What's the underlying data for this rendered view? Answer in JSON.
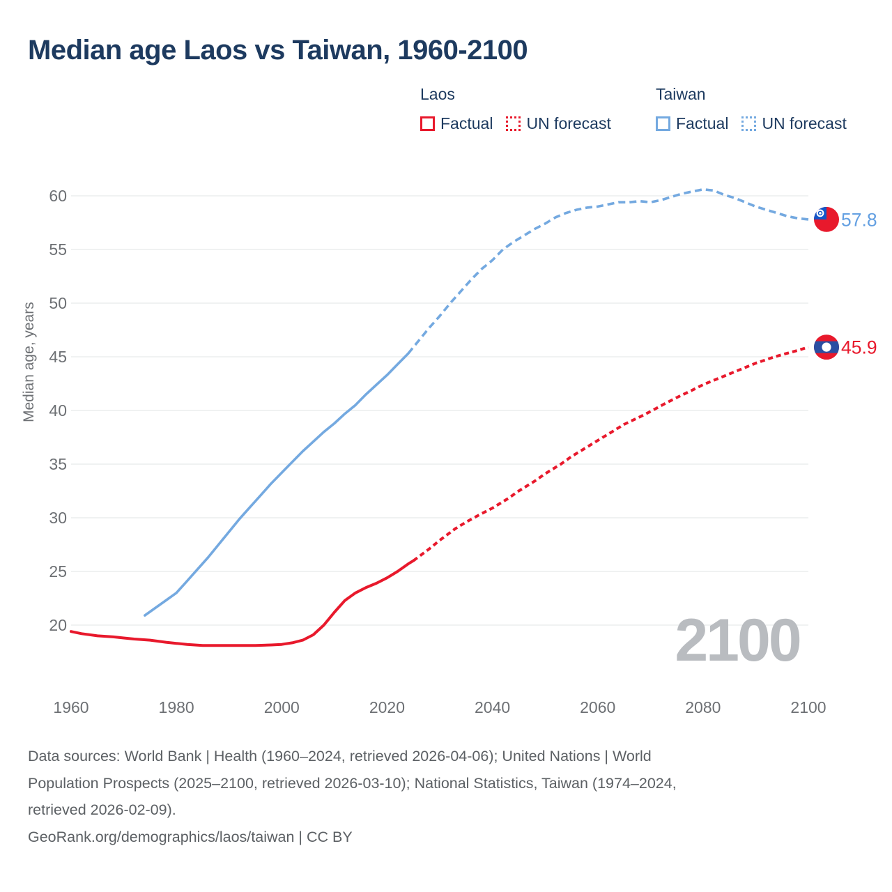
{
  "title": "Median age Laos vs Taiwan, 1960-2100",
  "legend": {
    "groups": [
      {
        "country": "Laos",
        "color": "#e8192c",
        "items": [
          {
            "label": "Factual",
            "style": "solid"
          },
          {
            "label": "UN forecast",
            "style": "dotted"
          }
        ]
      },
      {
        "country": "Taiwan",
        "color": "#74a9e0",
        "items": [
          {
            "label": "Factual",
            "style": "solid"
          },
          {
            "label": "UN forecast",
            "style": "dotted"
          }
        ]
      }
    ]
  },
  "watermark": "2100",
  "footer": {
    "lines": [
      "Data sources: World Bank | Health (1960–2024, retrieved 2026-04-06); United Nations | World",
      "Population Prospects (2025–2100, retrieved 2026-03-10); National Statistics, Taiwan (1974–2024,",
      "retrieved 2026-02-09).",
      "GeoRank.org/demographics/laos/taiwan | CC BY"
    ]
  },
  "colors": {
    "title": "#1d3a5f",
    "legend_text": "#1d3a5f",
    "laos": "#e8192c",
    "taiwan": "#74a9e0",
    "taiwan_label": "#64a0e2",
    "axis_text": "#6d7074",
    "grid": "#e8e9ea",
    "watermark": "#b9bcc0",
    "footer_text": "#5c6064",
    "flag_red": "#e8192c",
    "flag_taiwan_blue": "#1256c8",
    "flag_laos_blue": "#2a4fa2",
    "flag_white": "#ffffff"
  },
  "chart_data": {
    "type": "line",
    "title": "Median age Laos vs Taiwan, 1960-2100",
    "xlabel": "",
    "ylabel": "Median age, years",
    "x_ticks": [
      1960,
      1980,
      2000,
      2020,
      2040,
      2060,
      2080,
      2100
    ],
    "y_ticks": [
      20,
      25,
      30,
      35,
      40,
      45,
      50,
      55,
      60
    ],
    "xlim": [
      1960,
      2100
    ],
    "ylim": [
      20,
      60
    ],
    "grid": "horizontal",
    "legend_position": "top",
    "series": [
      {
        "id": "laos-factual",
        "name": "Laos — Factual",
        "color": "#e8192c",
        "dash": false,
        "width": 4,
        "points": [
          [
            1960,
            19.4
          ],
          [
            1962,
            19.2
          ],
          [
            1965,
            19.0
          ],
          [
            1968,
            18.9
          ],
          [
            1970,
            18.8
          ],
          [
            1972,
            18.7
          ],
          [
            1975,
            18.6
          ],
          [
            1978,
            18.4
          ],
          [
            1980,
            18.3
          ],
          [
            1982,
            18.2
          ],
          [
            1985,
            18.1
          ],
          [
            1988,
            18.1
          ],
          [
            1990,
            18.1
          ],
          [
            1992,
            18.1
          ],
          [
            1995,
            18.1
          ],
          [
            1998,
            18.15
          ],
          [
            2000,
            18.2
          ],
          [
            2002,
            18.35
          ],
          [
            2004,
            18.6
          ],
          [
            2006,
            19.1
          ],
          [
            2008,
            20.0
          ],
          [
            2010,
            21.2
          ],
          [
            2012,
            22.3
          ],
          [
            2014,
            23.0
          ],
          [
            2016,
            23.5
          ],
          [
            2018,
            23.9
          ],
          [
            2020,
            24.4
          ],
          [
            2022,
            25.0
          ],
          [
            2024,
            25.7
          ],
          [
            2025,
            26.0
          ]
        ]
      },
      {
        "id": "laos-forecast",
        "name": "Laos — UN forecast",
        "color": "#e8192c",
        "dash": true,
        "dash_pattern": "7,5",
        "width": 4,
        "points": [
          [
            2025,
            26.0
          ],
          [
            2028,
            27.1
          ],
          [
            2030,
            27.9
          ],
          [
            2033,
            29.0
          ],
          [
            2035,
            29.6
          ],
          [
            2038,
            30.4
          ],
          [
            2040,
            30.9
          ],
          [
            2043,
            31.8
          ],
          [
            2045,
            32.5
          ],
          [
            2048,
            33.4
          ],
          [
            2050,
            34.1
          ],
          [
            2053,
            35.0
          ],
          [
            2055,
            35.7
          ],
          [
            2058,
            36.6
          ],
          [
            2060,
            37.2
          ],
          [
            2063,
            38.1
          ],
          [
            2065,
            38.7
          ],
          [
            2068,
            39.4
          ],
          [
            2070,
            39.9
          ],
          [
            2073,
            40.7
          ],
          [
            2075,
            41.2
          ],
          [
            2078,
            41.9
          ],
          [
            2080,
            42.4
          ],
          [
            2083,
            43.0
          ],
          [
            2085,
            43.4
          ],
          [
            2088,
            44.0
          ],
          [
            2090,
            44.4
          ],
          [
            2093,
            44.9
          ],
          [
            2095,
            45.2
          ],
          [
            2098,
            45.6
          ],
          [
            2100,
            45.9
          ]
        ]
      },
      {
        "id": "taiwan-factual",
        "name": "Taiwan — Factual",
        "color": "#74a9e0",
        "dash": false,
        "width": 3.6,
        "points": [
          [
            1974,
            20.9
          ],
          [
            1976,
            21.6
          ],
          [
            1978,
            22.3
          ],
          [
            1980,
            23.0
          ],
          [
            1982,
            24.1
          ],
          [
            1984,
            25.2
          ],
          [
            1986,
            26.3
          ],
          [
            1988,
            27.5
          ],
          [
            1990,
            28.7
          ],
          [
            1992,
            29.9
          ],
          [
            1994,
            31.0
          ],
          [
            1996,
            32.1
          ],
          [
            1998,
            33.2
          ],
          [
            2000,
            34.2
          ],
          [
            2002,
            35.2
          ],
          [
            2004,
            36.2
          ],
          [
            2006,
            37.1
          ],
          [
            2008,
            38.0
          ],
          [
            2010,
            38.8
          ],
          [
            2012,
            39.7
          ],
          [
            2014,
            40.5
          ],
          [
            2016,
            41.5
          ],
          [
            2018,
            42.4
          ],
          [
            2020,
            43.3
          ],
          [
            2022,
            44.3
          ],
          [
            2024,
            45.3
          ]
        ]
      },
      {
        "id": "taiwan-forecast",
        "name": "Taiwan — UN forecast",
        "color": "#74a9e0",
        "dash": true,
        "dash_pattern": "10,6",
        "width": 3.6,
        "points": [
          [
            2024,
            45.3
          ],
          [
            2026,
            46.5
          ],
          [
            2028,
            47.7
          ],
          [
            2030,
            48.8
          ],
          [
            2032,
            50.0
          ],
          [
            2034,
            51.1
          ],
          [
            2036,
            52.2
          ],
          [
            2038,
            53.2
          ],
          [
            2040,
            54.0
          ],
          [
            2042,
            55.0
          ],
          [
            2044,
            55.7
          ],
          [
            2046,
            56.3
          ],
          [
            2048,
            56.9
          ],
          [
            2050,
            57.4
          ],
          [
            2052,
            58.0
          ],
          [
            2054,
            58.4
          ],
          [
            2056,
            58.7
          ],
          [
            2058,
            58.9
          ],
          [
            2060,
            59.0
          ],
          [
            2062,
            59.2
          ],
          [
            2064,
            59.4
          ],
          [
            2066,
            59.4
          ],
          [
            2068,
            59.5
          ],
          [
            2070,
            59.4
          ],
          [
            2072,
            59.6
          ],
          [
            2074,
            59.9
          ],
          [
            2076,
            60.2
          ],
          [
            2078,
            60.4
          ],
          [
            2080,
            60.6
          ],
          [
            2082,
            60.5
          ],
          [
            2084,
            60.1
          ],
          [
            2086,
            59.8
          ],
          [
            2088,
            59.4
          ],
          [
            2090,
            59.0
          ],
          [
            2092,
            58.7
          ],
          [
            2094,
            58.4
          ],
          [
            2096,
            58.1
          ],
          [
            2098,
            57.9
          ],
          [
            2100,
            57.8
          ]
        ]
      }
    ],
    "end_markers": [
      {
        "series": "taiwan",
        "year": 2100,
        "value": 57.8,
        "label": "57.8",
        "flag": "taiwan"
      },
      {
        "series": "laos",
        "year": 2100,
        "value": 45.9,
        "label": "45.9",
        "flag": "laos"
      }
    ]
  }
}
